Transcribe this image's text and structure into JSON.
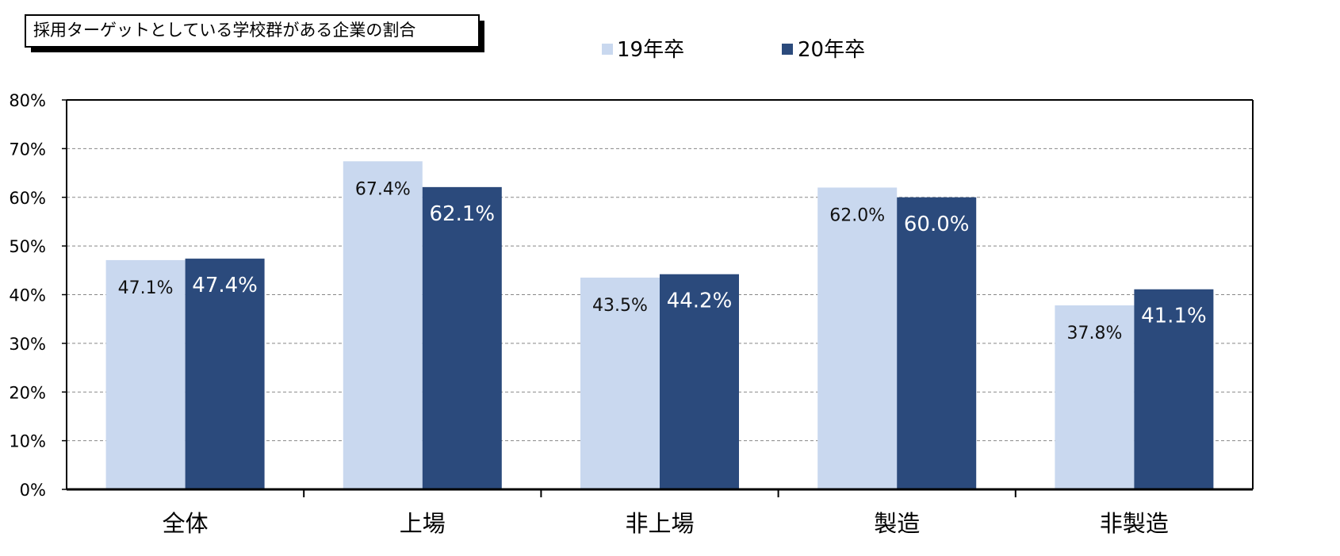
{
  "chart_data": {
    "type": "bar",
    "title": "採用ターゲットとしている学校群がある企業の割合",
    "categories": [
      "全体",
      "上場",
      "非上場",
      "製造",
      "非製造"
    ],
    "series": [
      {
        "name": "19年卒",
        "values": [
          47.1,
          67.4,
          43.5,
          62.0,
          37.8
        ]
      },
      {
        "name": "20年卒",
        "values": [
          47.4,
          62.1,
          44.2,
          60.0,
          41.1
        ]
      }
    ],
    "data_labels": [
      [
        "47.1%",
        "67.4%",
        "43.5%",
        "62.0%",
        "37.8%"
      ],
      [
        "47.4%",
        "62.1%",
        "44.2%",
        "60.0%",
        "41.1%"
      ]
    ],
    "ylim": [
      0,
      80
    ],
    "yticks": [
      0,
      10,
      20,
      30,
      40,
      50,
      60,
      70,
      80
    ],
    "ytick_labels": [
      "0%",
      "10%",
      "20%",
      "30%",
      "40%",
      "50%",
      "60%",
      "70%",
      "80%"
    ],
    "xlabel": "",
    "ylabel": "",
    "grid": true,
    "legend": "top-center",
    "colors": {
      "series": [
        "#c9d8ef",
        "#2b4a7c"
      ],
      "label_text": [
        "#111111",
        "#ffffff"
      ],
      "grid": "#888888",
      "axis": "#000000"
    }
  }
}
